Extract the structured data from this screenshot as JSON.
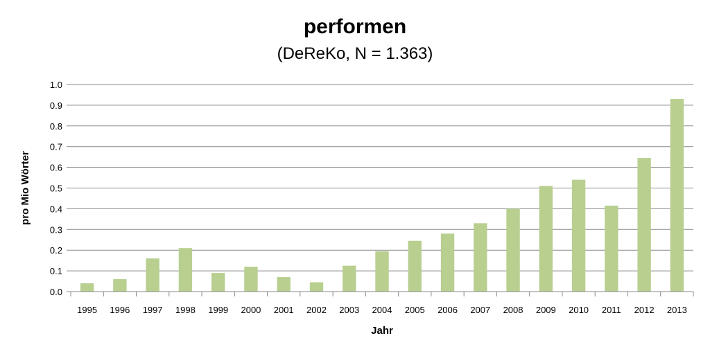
{
  "chart_data": {
    "type": "bar",
    "title": "performen",
    "subtitle": "(DeReKo, N = 1.363)",
    "xlabel": "Jahr",
    "ylabel": "pro Mio Wörter",
    "ylim": [
      0,
      1.0
    ],
    "yticks": [
      "0.0",
      "0.1",
      "0.2",
      "0.3",
      "0.4",
      "0.5",
      "0.6",
      "0.7",
      "0.8",
      "0.9",
      "1.0"
    ],
    "grid": true,
    "categories": [
      "1995",
      "1996",
      "1997",
      "1998",
      "1999",
      "2000",
      "2001",
      "2002",
      "2003",
      "2004",
      "2005",
      "2006",
      "2007",
      "2008",
      "2009",
      "2010",
      "2011",
      "2012",
      "2013"
    ],
    "values": [
      0.04,
      0.06,
      0.16,
      0.21,
      0.09,
      0.12,
      0.07,
      0.045,
      0.125,
      0.195,
      0.245,
      0.28,
      0.33,
      0.4,
      0.51,
      0.54,
      0.415,
      0.645,
      0.93
    ],
    "bar_color": "#b8cf8f",
    "grid_color": "#888888"
  }
}
